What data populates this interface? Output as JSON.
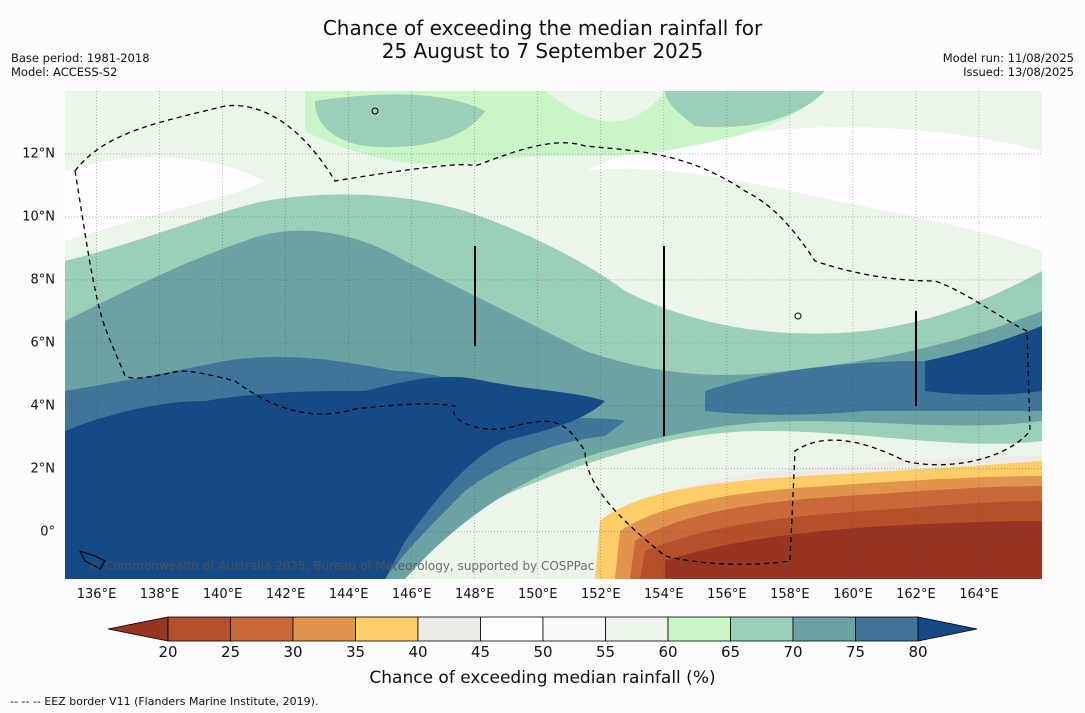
{
  "title": {
    "line1": "Chance of exceeding the median rainfall for",
    "line2": "25 August to 7 September 2025"
  },
  "meta_left": {
    "base_period": "Base period: 1981-2018",
    "model": "Model: ACCESS-S2"
  },
  "meta_right": {
    "model_run": "Model run: 11/08/2025",
    "issued": "Issued: 13/08/2025"
  },
  "map": {
    "lon_range": [
      135,
      166
    ],
    "lat_range": [
      -1.5,
      14
    ],
    "x_ticks": [
      "136°E",
      "138°E",
      "140°E",
      "142°E",
      "144°E",
      "146°E",
      "148°E",
      "150°E",
      "152°E",
      "154°E",
      "156°E",
      "158°E",
      "160°E",
      "162°E",
      "164°E"
    ],
    "y_ticks": [
      "12°N",
      "10°N",
      "8°N",
      "6°N",
      "4°N",
      "2°N",
      "0°"
    ],
    "copyright": "© Commonwealth of Australia 2025, Bureau of Meteorology, supported by COSPPac"
  },
  "colorbar": {
    "labels": [
      "20",
      "25",
      "30",
      "35",
      "40",
      "45",
      "50",
      "55",
      "60",
      "65",
      "70",
      "75",
      "80"
    ],
    "colors": [
      "#983522",
      "#b5502b",
      "#c9693a",
      "#e0944c",
      "#fdcd68",
      "#ecebe7",
      "#fdfdfd",
      "#f9fbf9",
      "#ebf5ea",
      "#c9f5c9",
      "#9ccfb8",
      "#6ba2a4",
      "#3f7599",
      "#154a86"
    ],
    "title": "Chance of exceeding median rainfall (%)"
  },
  "footnote": "--  --  -- EEZ border V11 (Flanders Marine Institute, 2019)."
}
